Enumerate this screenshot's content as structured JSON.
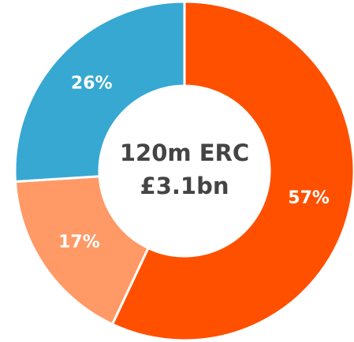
{
  "chart_data": {
    "type": "donut",
    "center_text": [
      "120m ERC",
      "£3.1bn"
    ],
    "categories": [
      null,
      null,
      null
    ],
    "values": [
      57,
      17,
      26
    ],
    "value_labels": [
      "57%",
      "17%",
      "26%"
    ],
    "colors": [
      "#ff5000",
      "#ff9966",
      "#36a8d2"
    ]
  }
}
